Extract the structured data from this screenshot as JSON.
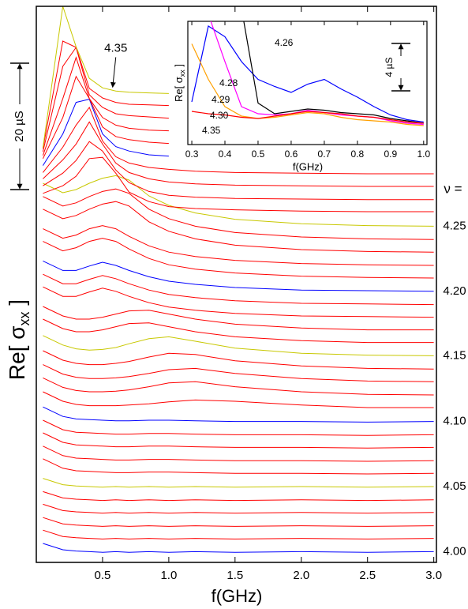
{
  "chart_data": [
    {
      "type": "line",
      "xlabel": "f(GHz)",
      "ylabel": {
        "main": "Re[ σ",
        "sub": "xx",
        "end": " ]"
      },
      "annotation": "ν =",
      "scale_bar": {
        "value": 20,
        "label": "20 µS"
      },
      "xlim": [
        0,
        3.02
      ],
      "ylim": [
        0,
        88
      ],
      "xticks": [
        0.5,
        {
          "value": 1.0,
          "label": "1.0"
        },
        1.5,
        {
          "value": 2.0,
          "label": "2.0"
        },
        2.5,
        {
          "value": 3.0,
          "label": "3.0"
        }
      ],
      "x": [
        0.05,
        0.2,
        0.3,
        0.4,
        0.5,
        0.6,
        0.7,
        0.85,
        1.0,
        1.2,
        1.5,
        2.0,
        2.5,
        3.0
      ],
      "series": [
        {
          "name": "4.00",
          "color": "#0000ff",
          "values": [
            3.0,
            2.0,
            1.8,
            1.7,
            1.6,
            1.7,
            1.6,
            1.7,
            1.6,
            1.7,
            1.6,
            1.7,
            1.6,
            1.7
          ]
        },
        {
          "color": "#ff0000",
          "values": [
            5.1,
            4.1,
            3.9,
            3.8,
            3.7,
            3.8,
            3.7,
            3.8,
            3.7,
            3.8,
            3.7,
            3.8,
            3.7,
            3.8
          ]
        },
        {
          "color": "#ff0000",
          "values": [
            7.1,
            6.1,
            5.9,
            5.8,
            5.7,
            5.8,
            5.7,
            5.8,
            5.7,
            5.8,
            5.7,
            5.8,
            5.7,
            5.8
          ]
        },
        {
          "color": "#ff0000",
          "values": [
            9.2,
            8.2,
            8.0,
            7.9,
            7.8,
            7.9,
            7.8,
            7.9,
            7.8,
            7.9,
            7.8,
            7.9,
            7.8,
            7.9
          ]
        },
        {
          "color": "#ff0000",
          "values": [
            11.2,
            10.2,
            10.0,
            9.9,
            9.8,
            9.9,
            9.8,
            9.9,
            9.8,
            9.9,
            9.8,
            9.9,
            9.8,
            9.9
          ]
        },
        {
          "name": "4.05",
          "color": "#c8c800",
          "values": [
            13.3,
            12.3,
            12.1,
            12.0,
            11.9,
            12.0,
            11.9,
            12.0,
            11.9,
            12.0,
            11.9,
            12.0,
            11.9,
            12.0
          ]
        },
        {
          "color": "#ff0000",
          "values": [
            16.4,
            14.9,
            14.5,
            14.4,
            14.3,
            14.2,
            14.2,
            14.3,
            14.3,
            14.2,
            14.1,
            14.1,
            14.0,
            14.1
          ]
        },
        {
          "color": "#ff0000",
          "values": [
            18.4,
            16.9,
            16.5,
            16.4,
            16.3,
            16.2,
            16.2,
            16.3,
            16.3,
            16.2,
            16.1,
            16.1,
            16.0,
            16.1
          ]
        },
        {
          "color": "#ff0000",
          "values": [
            20.5,
            19.0,
            18.6,
            18.5,
            18.4,
            18.3,
            18.3,
            18.4,
            18.4,
            18.3,
            18.2,
            18.2,
            18.1,
            18.2
          ]
        },
        {
          "color": "#ff0000",
          "values": [
            22.5,
            21.0,
            20.6,
            20.5,
            20.4,
            20.3,
            20.3,
            20.4,
            20.4,
            20.3,
            20.2,
            20.2,
            20.1,
            20.2
          ]
        },
        {
          "name": "4.10",
          "color": "#0000ff",
          "values": [
            24.6,
            23.1,
            22.7,
            22.6,
            22.5,
            22.4,
            22.4,
            22.5,
            22.5,
            22.4,
            22.3,
            22.3,
            22.2,
            22.3
          ]
        },
        {
          "color": "#ff0000",
          "values": [
            27.0,
            25.5,
            25.0,
            24.8,
            24.8,
            24.8,
            24.9,
            25.1,
            25.4,
            25.7,
            25.5,
            24.9,
            24.5,
            24.5
          ]
        },
        {
          "color": "#ff0000",
          "values": [
            29.2,
            27.7,
            27.2,
            27.0,
            27.0,
            27.1,
            27.3,
            27.8,
            28.4,
            28.6,
            27.8,
            27.0,
            26.6,
            26.5
          ]
        },
        {
          "color": "#ff0000",
          "values": [
            31.3,
            29.8,
            29.3,
            29.1,
            29.1,
            29.2,
            29.4,
            29.9,
            30.5,
            30.7,
            29.9,
            29.1,
            28.7,
            28.6
          ]
        },
        {
          "color": "#ff0000",
          "values": [
            33.5,
            32.0,
            31.5,
            31.3,
            31.3,
            31.5,
            31.8,
            32.5,
            33.1,
            32.9,
            31.9,
            31.1,
            30.7,
            30.6
          ]
        },
        {
          "name": "4.15",
          "color": "#c8c800",
          "values": [
            35.9,
            34.4,
            33.8,
            33.6,
            33.7,
            34.0,
            34.6,
            35.4,
            35.7,
            35.0,
            33.9,
            33.1,
            32.8,
            32.7
          ]
        },
        {
          "color": "#ff0000",
          "values": [
            38.5,
            37.0,
            36.5,
            36.5,
            36.8,
            37.3,
            37.8,
            37.9,
            37.3,
            36.5,
            35.7,
            35.1,
            34.8,
            34.8
          ]
        },
        {
          "color": "#ff0000",
          "values": [
            40.5,
            39.0,
            38.5,
            38.5,
            38.8,
            39.3,
            39.8,
            39.9,
            39.3,
            38.5,
            37.7,
            37.1,
            36.8,
            36.8
          ]
        },
        {
          "color": "#ff0000",
          "values": [
            43.6,
            42.1,
            42.1,
            42.8,
            43.4,
            42.9,
            42.1,
            41.1,
            40.4,
            39.9,
            39.4,
            39.0,
            38.9,
            38.8
          ]
        },
        {
          "color": "#ff0000",
          "values": [
            45.6,
            44.1,
            44.1,
            44.8,
            45.4,
            44.9,
            44.1,
            43.1,
            42.4,
            41.9,
            41.4,
            41.0,
            40.9,
            40.8
          ]
        },
        {
          "name": "4.20",
          "color": "#0000ff",
          "values": [
            47.7,
            46.2,
            46.2,
            46.9,
            47.5,
            47.0,
            46.2,
            45.2,
            44.5,
            44.0,
            43.5,
            43.1,
            43.0,
            42.9
          ]
        },
        {
          "color": "#ff0000",
          "values": [
            50.8,
            49.3,
            49.8,
            50.8,
            51.3,
            50.8,
            49.6,
            48.1,
            47.1,
            46.4,
            45.8,
            45.3,
            45.1,
            45.0
          ]
        },
        {
          "color": "#ff0000",
          "values": [
            52.8,
            51.3,
            51.8,
            52.8,
            53.3,
            52.8,
            51.6,
            50.1,
            49.1,
            48.4,
            47.8,
            47.3,
            47.1,
            47.0
          ]
        },
        {
          "color": "#ff0000",
          "values": [
            55.9,
            54.4,
            54.9,
            55.9,
            56.7,
            57.1,
            56.4,
            53.9,
            52.4,
            51.2,
            50.2,
            49.5,
            49.2,
            49.1
          ]
        },
        {
          "color": "#ff0000",
          "values": [
            57.9,
            56.4,
            56.9,
            57.9,
            58.7,
            59.1,
            58.4,
            55.9,
            54.4,
            53.2,
            52.2,
            51.5,
            51.2,
            51.1
          ]
        },
        {
          "name": "4.25",
          "color": "#c8c800",
          "values": [
            60.0,
            58.5,
            59.0,
            60.0,
            60.8,
            61.2,
            60.5,
            58.0,
            56.5,
            55.3,
            54.3,
            53.6,
            53.3,
            53.2
          ]
        },
        {
          "color": "#ff0000",
          "values": [
            58.4,
            59.6,
            61.1,
            63.9,
            64.1,
            61.6,
            58.6,
            57.1,
            56.3,
            56.0,
            55.8,
            55.6,
            55.5,
            55.5
          ]
        },
        {
          "color": "#ff0000",
          "values": [
            59.6,
            61.6,
            63.6,
            66.6,
            65.1,
            62.1,
            60.1,
            58.7,
            58.1,
            57.8,
            57.6,
            57.5,
            57.4,
            57.4
          ]
        },
        {
          "color": "#ff0000",
          "values": [
            60.7,
            63.7,
            66.2,
            69.7,
            66.2,
            63.2,
            61.7,
            60.7,
            60.2,
            59.9,
            59.7,
            59.6,
            59.5,
            59.5
          ]
        },
        {
          "color": "#ff0000",
          "values": [
            61.7,
            65.7,
            69.2,
            72.0,
            66.7,
            64.2,
            63.2,
            62.5,
            62.2,
            61.9,
            61.7,
            61.6,
            61.5,
            61.5
          ]
        },
        {
          "color": "#0000ff",
          "values": [
            62.8,
            67.8,
            72.8,
            73.3,
            67.8,
            65.8,
            65.1,
            64.5,
            64.3,
            null,
            null,
            null,
            null,
            null
          ]
        },
        {
          "color": "#ff0000",
          "values": [
            63.9,
            70.4,
            76.9,
            73.4,
            68.9,
            67.4,
            66.9,
            66.5,
            66.3,
            null,
            null,
            null,
            null,
            null
          ]
        },
        {
          "color": "#ff0000",
          "values": [
            64.4,
            73.4,
            79.9,
            73.4,
            70.4,
            69.2,
            68.7,
            68.4,
            68.3,
            null,
            null,
            null,
            null,
            null
          ]
        },
        {
          "color": "#ff0000",
          "values": [
            65.0,
            78.5,
            81.5,
            74.0,
            72.0,
            71.0,
            70.7,
            70.5,
            70.3,
            null,
            null,
            null,
            null,
            null
          ]
        },
        {
          "color": "#ff0000",
          "values": [
            65.5,
            82.5,
            81.5,
            75.0,
            73.5,
            72.8,
            72.5,
            72.4,
            72.3,
            null,
            null,
            null,
            null,
            null
          ]
        },
        {
          "name": "4.35",
          "color": "#c8c800",
          "values": [
            65.6,
            88.0,
            81.6,
            76.6,
            75.1,
            74.6,
            74.4,
            74.3,
            74.2,
            null,
            null,
            null,
            null,
            null
          ]
        }
      ]
    },
    {
      "type": "line",
      "xlabel": "f(GHz)",
      "ylabel": {
        "main": "Re[ σ",
        "sub": "xx",
        "end": " ]"
      },
      "scale_bar": {
        "value": 4,
        "label": "4 µS"
      },
      "xlim": [
        0.288,
        1.01
      ],
      "ylim": [
        0,
        10.4
      ],
      "xticks": [
        0.3,
        0.4,
        0.5,
        0.6,
        0.7,
        0.8,
        0.9,
        {
          "value": 1.0,
          "label": "1.0"
        }
      ],
      "x": [
        0.3,
        0.35,
        0.4,
        0.45,
        0.5,
        0.55,
        0.6,
        0.65,
        0.7,
        0.75,
        0.8,
        0.85,
        0.9,
        0.95,
        1.0
      ],
      "series": [
        {
          "name": "4.26",
          "color": "#0000ff",
          "values": [
            3.6,
            10.0,
            9.1,
            7.0,
            5.5,
            4.9,
            4.4,
            5.1,
            5.5,
            4.7,
            4.0,
            3.2,
            2.5,
            2.1,
            1.9
          ]
        },
        {
          "name": "4.28",
          "color": "#000000",
          "values": [
            null,
            null,
            null,
            11.5,
            3.5,
            2.6,
            2.8,
            3.0,
            2.9,
            2.7,
            2.6,
            2.5,
            2.2,
            2.0,
            1.8
          ]
        },
        {
          "name": "4.29",
          "color": "#ff00ff",
          "values": [
            null,
            11.0,
            7.0,
            3.2,
            2.6,
            2.5,
            2.6,
            2.9,
            2.7,
            2.5,
            2.4,
            2.3,
            2.0,
            1.8,
            1.7
          ]
        },
        {
          "name": "4.30",
          "color": "#ffa000",
          "values": [
            8.5,
            5.5,
            3.2,
            2.4,
            2.2,
            2.3,
            2.5,
            2.7,
            2.6,
            2.3,
            2.1,
            2.0,
            1.9,
            1.7,
            1.6
          ]
        },
        {
          "name": "4.35",
          "color": "#ff0000",
          "values": [
            2.8,
            2.6,
            2.5,
            2.3,
            2.2,
            2.4,
            2.6,
            2.8,
            2.7,
            2.6,
            2.4,
            2.3,
            2.1,
            1.9,
            1.8
          ]
        }
      ]
    }
  ]
}
